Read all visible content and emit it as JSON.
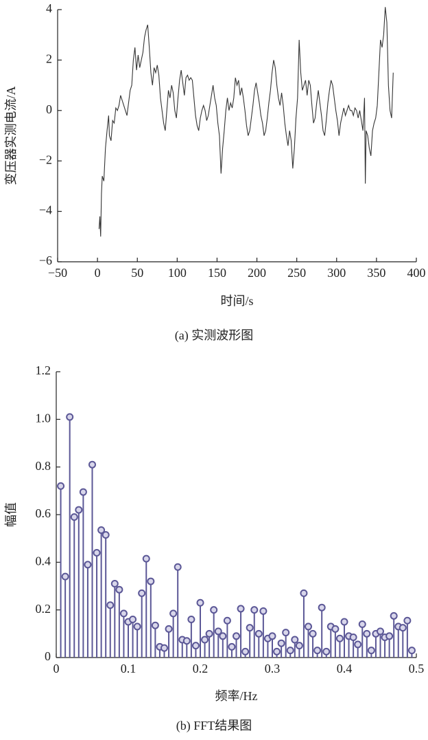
{
  "chart_data": [
    {
      "type": "line",
      "caption": "(a) 实测波形图",
      "x_label": "时间/s",
      "y_label": "变压器实测电流/A",
      "xlim": [
        -50,
        400
      ],
      "ylim": [
        -6,
        4
      ],
      "xticks": [
        {
          "value": -50,
          "label": "−50"
        },
        0,
        50,
        100,
        150,
        200,
        250,
        300,
        350,
        400
      ],
      "yticks": [
        {
          "value": -6,
          "label": "−6"
        },
        {
          "value": -4,
          "label": "−4"
        },
        {
          "value": -2,
          "label": "−2"
        },
        0,
        2,
        4
      ],
      "color": "#333333",
      "x": [
        2,
        3,
        4,
        5,
        6,
        8,
        10,
        12,
        14,
        15,
        17,
        19,
        21,
        23,
        25,
        27,
        29,
        31,
        33,
        35,
        37,
        39,
        41,
        43,
        45,
        47,
        49,
        51,
        53,
        55,
        57,
        59,
        61,
        63,
        65,
        67,
        69,
        71,
        73,
        75,
        77,
        79,
        81,
        83,
        85,
        87,
        89,
        91,
        93,
        95,
        97,
        99,
        101,
        103,
        105,
        107,
        109,
        111,
        113,
        115,
        117,
        119,
        121,
        123,
        125,
        127,
        129,
        131,
        133,
        135,
        137,
        139,
        141,
        143,
        145,
        147,
        149,
        151,
        153,
        155,
        157,
        159,
        161,
        163,
        165,
        167,
        169,
        171,
        173,
        175,
        177,
        179,
        181,
        183,
        185,
        187,
        189,
        191,
        193,
        195,
        197,
        199,
        201,
        203,
        205,
        207,
        209,
        211,
        213,
        215,
        217,
        219,
        221,
        223,
        225,
        227,
        229,
        231,
        233,
        235,
        237,
        239,
        241,
        243,
        245,
        247,
        249,
        251,
        253,
        255,
        257,
        259,
        261,
        263,
        265,
        267,
        269,
        271,
        273,
        275,
        277,
        279,
        281,
        283,
        285,
        287,
        289,
        291,
        293,
        295,
        297,
        299,
        301,
        303,
        305,
        307,
        309,
        311,
        313,
        315,
        317,
        319,
        321,
        323,
        325,
        327,
        329,
        331,
        333,
        335,
        336,
        337,
        339,
        341,
        343,
        345,
        347,
        349,
        351,
        353,
        355,
        357,
        359,
        361,
        363,
        365,
        367,
        369,
        371
      ],
      "values": [
        -4.7,
        -4.2,
        -5.0,
        -3.3,
        -2.6,
        -2.8,
        -1.5,
        -0.8,
        -0.2,
        -1.0,
        -1.2,
        -0.4,
        -0.5,
        0.1,
        0.0,
        0.2,
        0.6,
        0.4,
        0.2,
        0.0,
        -0.2,
        0.3,
        0.8,
        1.0,
        2.0,
        2.5,
        1.6,
        2.2,
        1.7,
        2.0,
        2.3,
        2.9,
        3.2,
        3.4,
        2.5,
        1.5,
        1.0,
        1.7,
        1.5,
        1.8,
        1.4,
        0.5,
        0.0,
        -0.5,
        -0.8,
        0.0,
        0.8,
        0.5,
        1.0,
        0.7,
        0.0,
        -0.3,
        0.5,
        1.2,
        1.6,
        1.1,
        0.6,
        1.3,
        1.4,
        1.2,
        1.3,
        1.2,
        0.5,
        -0.2,
        -0.6,
        -0.8,
        -0.3,
        0.0,
        0.2,
        0.0,
        -0.4,
        -0.2,
        0.2,
        0.6,
        1.0,
        0.5,
        0.2,
        -0.5,
        -1.0,
        -2.5,
        -1.5,
        -0.8,
        0.0,
        0.5,
        0.0,
        0.3,
        0.1,
        0.5,
        1.3,
        1.0,
        1.2,
        0.6,
        0.9,
        0.5,
        0.0,
        -0.6,
        -1.0,
        -0.8,
        -0.3,
        0.2,
        0.8,
        1.1,
        0.7,
        0.3,
        -0.2,
        -0.5,
        -1.0,
        -0.8,
        -0.3,
        0.3,
        0.8,
        1.5,
        2.0,
        1.7,
        1.0,
        0.5,
        0.2,
        0.7,
        0.2,
        -0.5,
        -1.0,
        -1.4,
        -0.8,
        -1.2,
        -2.3,
        -1.5,
        -0.3,
        0.5,
        2.8,
        1.5,
        0.8,
        1.0,
        1.2,
        0.6,
        1.2,
        1.0,
        0.2,
        -0.5,
        -0.3,
        0.3,
        0.8,
        0.3,
        -0.2,
        -0.8,
        -1.0,
        -0.4,
        0.3,
        0.8,
        1.2,
        1.0,
        0.5,
        0.0,
        -0.4,
        -1.0,
        -0.5,
        -0.2,
        0.1,
        -0.2,
        0.0,
        0.2,
        0.0,
        0.0,
        -0.2,
        0.1,
        0.0,
        -0.3,
        0.0,
        -0.4,
        -0.8,
        0.5,
        -2.9,
        -0.8,
        -1.0,
        -1.5,
        -1.8,
        -0.8,
        -0.5,
        -0.3,
        0.2,
        1.5,
        2.8,
        2.5,
        3.0,
        4.1,
        3.5,
        1.0,
        0.0,
        -0.3,
        1.5
      ]
    },
    {
      "type": "stem",
      "caption": "(b) FFT结果图",
      "x_label": "频率/Hz",
      "y_label": "幅值",
      "xlim": [
        0,
        0.5
      ],
      "ylim": [
        0,
        1.2
      ],
      "xticks": [
        0,
        0.1,
        0.2,
        0.3,
        0.4,
        0.5
      ],
      "yticks": [
        0,
        0.2,
        0.4,
        0.6,
        0.8,
        {
          "value": 1,
          "label": "1.0"
        },
        1.2
      ],
      "color": "#5b5796",
      "x": [
        0.00625,
        0.0125,
        0.01875,
        0.025,
        0.03125,
        0.0375,
        0.04375,
        0.05,
        0.05625,
        0.0625,
        0.06875,
        0.075,
        0.08125,
        0.0875,
        0.09375,
        0.1,
        0.10625,
        0.1125,
        0.11875,
        0.125,
        0.13125,
        0.1375,
        0.14375,
        0.15,
        0.15625,
        0.1625,
        0.16875,
        0.175,
        0.18125,
        0.1875,
        0.19375,
        0.2,
        0.20625,
        0.2125,
        0.21875,
        0.225,
        0.23125,
        0.2375,
        0.24375,
        0.25,
        0.25625,
        0.2625,
        0.26875,
        0.275,
        0.28125,
        0.2875,
        0.29375,
        0.3,
        0.30625,
        0.3125,
        0.31875,
        0.325,
        0.33125,
        0.3375,
        0.34375,
        0.35,
        0.35625,
        0.3625,
        0.36875,
        0.375,
        0.38125,
        0.3875,
        0.39375,
        0.4,
        0.40625,
        0.4125,
        0.41875,
        0.425,
        0.43125,
        0.4375,
        0.44375,
        0.45,
        0.45625,
        0.4625,
        0.46875,
        0.475,
        0.48125,
        0.4875,
        0.49375
      ],
      "values": [
        0.72,
        0.34,
        1.01,
        0.59,
        0.62,
        0.695,
        0.39,
        0.81,
        0.44,
        0.535,
        0.515,
        0.22,
        0.31,
        0.285,
        0.185,
        0.15,
        0.16,
        0.13,
        0.27,
        0.415,
        0.32,
        0.135,
        0.045,
        0.04,
        0.12,
        0.185,
        0.38,
        0.075,
        0.07,
        0.16,
        0.05,
        0.23,
        0.075,
        0.1,
        0.2,
        0.11,
        0.09,
        0.155,
        0.045,
        0.09,
        0.205,
        0.025,
        0.125,
        0.2,
        0.1,
        0.195,
        0.08,
        0.09,
        0.025,
        0.06,
        0.105,
        0.03,
        0.075,
        0.05,
        0.27,
        0.13,
        0.1,
        0.03,
        0.21,
        0.025,
        0.13,
        0.12,
        0.08,
        0.15,
        0.09,
        0.085,
        0.055,
        0.14,
        0.1,
        0.03,
        0.1,
        0.11,
        0.085,
        0.09,
        0.175,
        0.13,
        0.125,
        0.155,
        0.03
      ]
    }
  ]
}
